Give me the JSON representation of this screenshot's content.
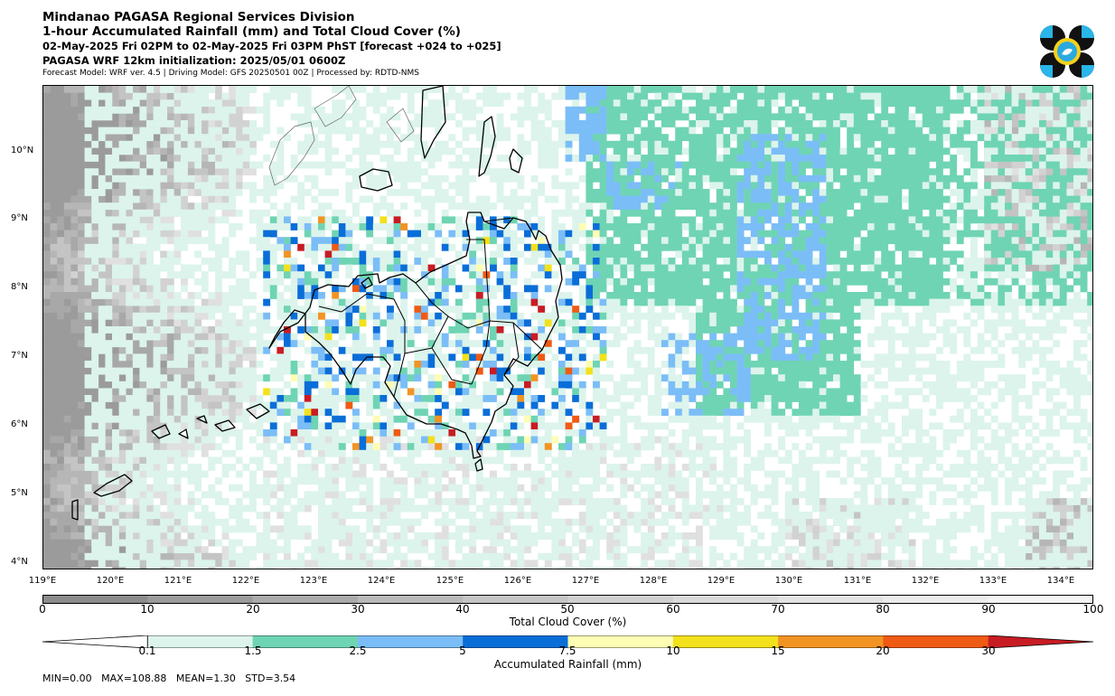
{
  "header": {
    "line1": "Mindanao PAGASA Regional Services Division",
    "line2": "1-hour Accumulated Rainfall (mm) and Total Cloud Cover (%)",
    "line3": "02-May-2025 Fri 02PM to 02-May-2025 Fri 03PM PhST [forecast +024 to +025]",
    "line4": "PAGASA WRF 12km initialization: 2025/05/01 0600Z",
    "line5": "Forecast Model: WRF ver. 4.5 | Driving Model: GFS 20250501 00Z | Processed by: RDTD-NMS"
  },
  "map": {
    "lon_range": [
      119,
      134.5
    ],
    "lat_range": [
      3.9,
      11.0
    ],
    "lat_labels": [
      "10°N",
      "9°N",
      "8°N",
      "7°N",
      "6°N",
      "5°N",
      "4°N"
    ],
    "lon_labels": [
      "119°E",
      "120°E",
      "121°E",
      "122°E",
      "123°E",
      "124°E",
      "125°E",
      "126°E",
      "127°E",
      "128°E",
      "129°E",
      "130°E",
      "131°E",
      "132°E",
      "133°E",
      "134°E"
    ]
  },
  "cloud_colorbar": {
    "label": "Total Cloud Cover (%)",
    "ticks": [
      "0",
      "10",
      "20",
      "30",
      "40",
      "50",
      "60",
      "70",
      "80",
      "90",
      "100"
    ],
    "colors": [
      "#8c8c8c",
      "#9b9b9b",
      "#aaaaaa",
      "#b9b9b9",
      "#c5c5c5",
      "#d0d0d0",
      "#dadada",
      "#e3e3e3",
      "#ececec",
      "#f4f4f4"
    ]
  },
  "rain_colorbar": {
    "label": "Accumulated Rainfall (mm)",
    "ticks": [
      "0.1",
      "1.5",
      "2.5",
      "5",
      "7.5",
      "10",
      "15",
      "20",
      "30"
    ],
    "colors": [
      "#dcf4ec",
      "#6fd4b4",
      "#7bbdf7",
      "#0a6ed8",
      "#fefdb4",
      "#f3e11c",
      "#f29424",
      "#ef5a14",
      "#c81c24"
    ]
  },
  "stats": {
    "text": "MIN=0.00   MAX=108.88   MEAN=1.30   STD=3.54"
  }
}
